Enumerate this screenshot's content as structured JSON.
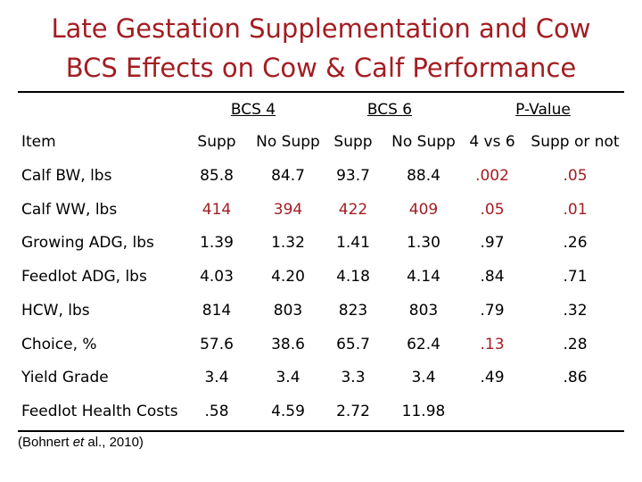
{
  "title_line1": "Late Gestation Supplementation and Cow",
  "title_line2": "BCS Effects on Cow & Calf Performance",
  "group_headers": {
    "bcs4": "BCS 4",
    "bcs6": "BCS 6",
    "pvalue": "P-Value"
  },
  "columns": [
    "Item",
    "Supp",
    "No Supp",
    "Supp",
    "No Supp",
    "4 vs 6",
    "Supp or not"
  ],
  "rows": [
    {
      "item": "Calf BW, lbs",
      "values": [
        "85.8",
        "84.7",
        "93.7",
        "88.4",
        ".002",
        ".05"
      ]
    },
    {
      "item": "Calf WW, lbs",
      "values": [
        "414",
        "394",
        "422",
        "409",
        ".05",
        ".01"
      ]
    },
    {
      "item": "Growing ADG, lbs",
      "values": [
        "1.39",
        "1.32",
        "1.41",
        "1.30",
        ".97",
        ".26"
      ]
    },
    {
      "item": "Feedlot ADG, lbs",
      "values": [
        "4.03",
        "4.20",
        "4.18",
        "4.14",
        ".84",
        ".71"
      ]
    },
    {
      "item": "HCW, lbs",
      "values": [
        "814",
        "803",
        "823",
        "803",
        ".79",
        ".32"
      ]
    },
    {
      "item": "Choice, %",
      "values": [
        "57.6",
        "38.6",
        "65.7",
        "62.4",
        ".13",
        ".28"
      ]
    },
    {
      "item": "Yield Grade",
      "values": [
        "3.4",
        "3.4",
        "3.3",
        "3.4",
        ".49",
        ".86"
      ]
    },
    {
      "item": "Feedlot Health Costs",
      "values": [
        ".58",
        "4.59",
        "2.72",
        "11.98",
        "",
        ""
      ]
    }
  ],
  "highlight_color": "#a31d22",
  "citation": {
    "pre": "(Bohnert ",
    "em": "et",
    "post": " al., 2010)"
  }
}
